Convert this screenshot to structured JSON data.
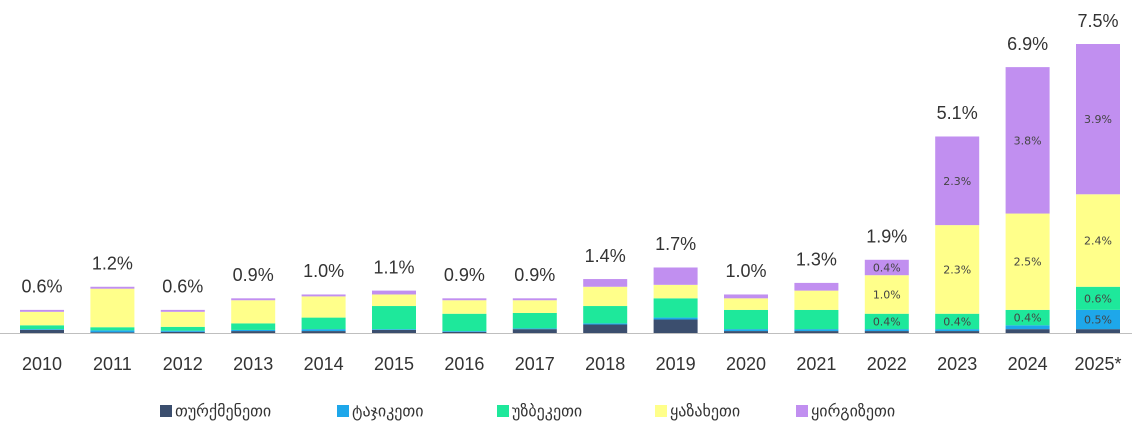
{
  "chart_data": {
    "type": "stacked_bar",
    "categories": [
      "2010",
      "2011",
      "2012",
      "2013",
      "2014",
      "2015",
      "2016",
      "2017",
      "2018",
      "2019",
      "2020",
      "2021",
      "2022",
      "2023",
      "2024",
      "2025*"
    ],
    "series": [
      {
        "name": "თურქმენეთი",
        "color": "#3b4e6e",
        "values": [
          0.08,
          0.02,
          0.03,
          0.05,
          0.05,
          0.08,
          0.03,
          0.1,
          0.22,
          0.35,
          0.05,
          0.05,
          0.05,
          0.05,
          0.1,
          0.1
        ]
      },
      {
        "name": "ტაჯიკეთი",
        "color": "#1ea7ea",
        "values": [
          0.02,
          0.05,
          0.03,
          0.03,
          0.05,
          0.02,
          0.02,
          0.02,
          0.03,
          0.05,
          0.05,
          0.05,
          0.05,
          0.05,
          0.1,
          0.5
        ],
        "value_labels": [
          null,
          null,
          null,
          null,
          null,
          null,
          null,
          null,
          null,
          null,
          null,
          null,
          null,
          null,
          null,
          "0.5%"
        ]
      },
      {
        "name": "უზბეკეთი",
        "color": "#1ee89b",
        "values": [
          0.1,
          0.08,
          0.1,
          0.17,
          0.3,
          0.6,
          0.45,
          0.4,
          0.45,
          0.5,
          0.5,
          0.5,
          0.4,
          0.4,
          0.4,
          0.6
        ],
        "value_labels": [
          null,
          null,
          null,
          null,
          null,
          null,
          null,
          null,
          null,
          null,
          null,
          null,
          "0.4%",
          "0.4%",
          "0.4%",
          "0.6%"
        ]
      },
      {
        "name": "ყაზახეთი",
        "color": "#ffff8a",
        "values": [
          0.35,
          1.0,
          0.39,
          0.6,
          0.55,
          0.3,
          0.35,
          0.33,
          0.5,
          0.35,
          0.3,
          0.5,
          1.0,
          2.3,
          2.5,
          2.4
        ],
        "value_labels": [
          null,
          null,
          null,
          null,
          null,
          null,
          null,
          null,
          null,
          null,
          null,
          null,
          "1.0%",
          "2.3%",
          "2.5%",
          "2.4%"
        ]
      },
      {
        "name": "ყირგიზეთი",
        "color": "#c18ff0",
        "values": [
          0.05,
          0.05,
          0.05,
          0.05,
          0.05,
          0.1,
          0.05,
          0.05,
          0.2,
          0.45,
          0.1,
          0.2,
          0.4,
          2.3,
          3.8,
          3.9
        ],
        "value_labels": [
          null,
          null,
          null,
          null,
          null,
          null,
          null,
          null,
          null,
          null,
          null,
          null,
          "0.4%",
          "2.3%",
          "3.8%",
          "3.9%"
        ]
      }
    ],
    "totals": [
      0.6,
      1.2,
      0.6,
      0.9,
      1.0,
      1.1,
      0.9,
      0.9,
      1.4,
      1.7,
      1.0,
      1.3,
      1.9,
      5.1,
      6.9,
      7.5
    ],
    "total_labels": [
      "0.6%",
      "1.2%",
      "0.6%",
      "0.9%",
      "1.0%",
      "1.1%",
      "0.9%",
      "0.9%",
      "1.4%",
      "1.7%",
      "1.0%",
      "1.3%",
      "1.9%",
      "5.1%",
      "6.9%",
      "7.5%"
    ],
    "legend": "bottom"
  }
}
